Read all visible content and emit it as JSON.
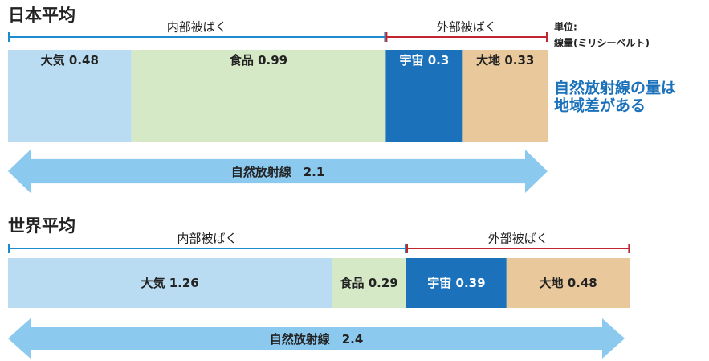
{
  "unit_label": "単位:",
  "unit": "線量(ミリシーベルト)",
  "note": [
    "自然放射線の量は",
    "地域差がある"
  ],
  "chart_data": [
    {
      "type": "stacked-bar",
      "title": "日本平均",
      "label_position": "top",
      "total_label": "自然放射線",
      "total": 2.1,
      "series": [
        {
          "name": "内部被ばく",
          "color": "#1d8ccf",
          "categories": [
            "大気",
            "食品"
          ],
          "values": [
            0.48,
            0.99
          ],
          "colors": [
            "#b9dcf3",
            "#d6e9c6"
          ],
          "text_colors": [
            "#222222",
            "#222222"
          ]
        },
        {
          "name": "外部被ばく",
          "color": "#c0262f",
          "categories": [
            "宇宙",
            "大地"
          ],
          "values": [
            0.3,
            0.33
          ],
          "colors": [
            "#1b72bb",
            "#e9c89b"
          ],
          "text_colors": [
            "#ffffff",
            "#222222"
          ]
        }
      ]
    },
    {
      "type": "stacked-bar",
      "title": "世界平均",
      "label_position": "middle",
      "total_label": "自然放射線",
      "total": 2.4,
      "series": [
        {
          "name": "内部被ばく",
          "color": "#1d8ccf",
          "categories": [
            "大気",
            "食品"
          ],
          "values": [
            1.26,
            0.29
          ],
          "colors": [
            "#b9dcf3",
            "#d6e9c6"
          ],
          "text_colors": [
            "#222222",
            "#222222"
          ]
        },
        {
          "name": "外部被ばく",
          "color": "#c0262f",
          "categories": [
            "宇宙",
            "大地"
          ],
          "values": [
            0.39,
            0.48
          ],
          "colors": [
            "#1b72bb",
            "#e9c89b"
          ],
          "text_colors": [
            "#ffffff",
            "#222222"
          ]
        }
      ]
    }
  ]
}
